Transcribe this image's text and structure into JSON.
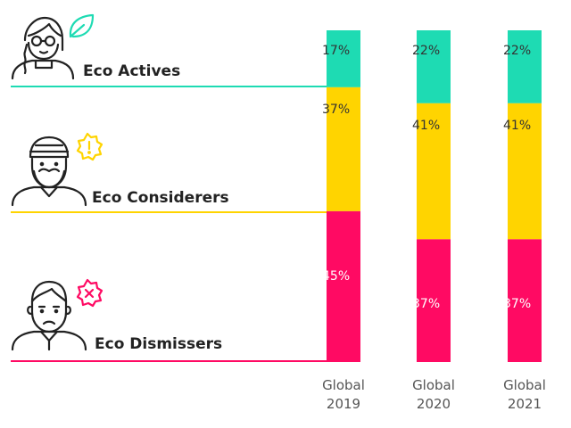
{
  "colors": {
    "eco_actives": "#1EDBB3",
    "eco_considerers": "#FFD400",
    "eco_dismissers": "#FF0A63",
    "leaf_icon": "#1EDBB3",
    "alert_icon": "#FFD400",
    "cross_icon": "#FF0A63"
  },
  "segments": [
    {
      "name": "Eco Actives",
      "icon": "woman-with-glasses-icon",
      "badge": "leaf-icon"
    },
    {
      "name": "Eco Considerers",
      "icon": "man-with-beanie-and-beard-icon",
      "badge": "alert-icon"
    },
    {
      "name": "Eco Dismissers",
      "icon": "man-face-icon",
      "badge": "cross-icon"
    }
  ],
  "chart_data": {
    "type": "bar",
    "stacked": true,
    "categories": [
      "Global\n2019",
      "Global\n2020",
      "Global\n2021"
    ],
    "series": [
      {
        "name": "Eco Actives",
        "values": [
          17,
          22,
          22
        ],
        "labels": [
          "17%",
          "22%",
          "22%"
        ]
      },
      {
        "name": "Eco Considerers",
        "values": [
          37,
          41,
          41
        ],
        "labels": [
          "37%",
          "41%",
          "41%"
        ]
      },
      {
        "name": "Eco Dismissers",
        "values": [
          45,
          37,
          37
        ],
        "labels": [
          "45%",
          "37%",
          "37%"
        ]
      }
    ]
  }
}
